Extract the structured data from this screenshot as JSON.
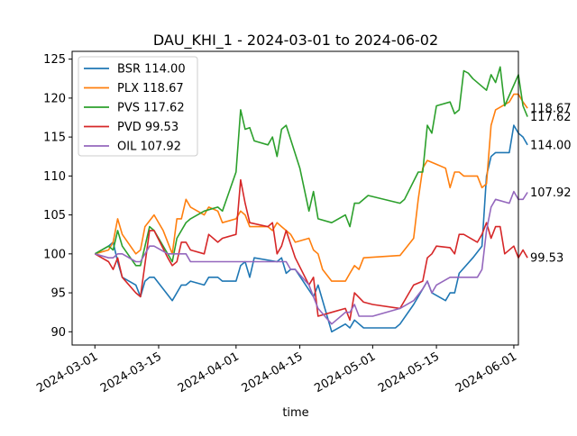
{
  "chart_data": {
    "type": "line",
    "title": "DAU_KHI_1 - 2024-03-01 to 2024-06-02",
    "xlabel": "time",
    "ylabel": "",
    "xlim": [
      "2024-02-25",
      "2024-06-02"
    ],
    "ylim": [
      88.3,
      126.0
    ],
    "grid": false,
    "legend_position": "top-left",
    "x_ticks": [
      "2024-03-01",
      "2024-03-15",
      "2024-04-01",
      "2024-04-15",
      "2024-05-01",
      "2024-05-15",
      "2024-06-01"
    ],
    "y_ticks": [
      90,
      95,
      100,
      105,
      110,
      115,
      120,
      125
    ],
    "series": [
      {
        "name": "BSR 114.00",
        "color": "#1f77b4",
        "end_label": "114.00",
        "points": [
          [
            "2024-03-01",
            100
          ],
          [
            "2024-03-04",
            101
          ],
          [
            "2024-03-05",
            101.5
          ],
          [
            "2024-03-06",
            99
          ],
          [
            "2024-03-07",
            97
          ],
          [
            "2024-03-10",
            96
          ],
          [
            "2024-03-11",
            94.5
          ],
          [
            "2024-03-12",
            96.5
          ],
          [
            "2024-03-13",
            97
          ],
          [
            "2024-03-14",
            97
          ],
          [
            "2024-03-18",
            94
          ],
          [
            "2024-03-20",
            96
          ],
          [
            "2024-03-21",
            96
          ],
          [
            "2024-03-22",
            96.5
          ],
          [
            "2024-03-25",
            96
          ],
          [
            "2024-03-26",
            97
          ],
          [
            "2024-03-28",
            97
          ],
          [
            "2024-03-29",
            96.5
          ],
          [
            "2024-04-01",
            96.5
          ],
          [
            "2024-04-02",
            98.5
          ],
          [
            "2024-04-03",
            99
          ],
          [
            "2024-04-04",
            97
          ],
          [
            "2024-04-05",
            99.5
          ],
          [
            "2024-04-10",
            99
          ],
          [
            "2024-04-11",
            99.5
          ],
          [
            "2024-04-12",
            97.5
          ],
          [
            "2024-04-13",
            98
          ],
          [
            "2024-04-14",
            98
          ],
          [
            "2024-04-18",
            94.5
          ],
          [
            "2024-04-19",
            96
          ],
          [
            "2024-04-22",
            90
          ],
          [
            "2024-04-25",
            91
          ],
          [
            "2024-04-26",
            90.5
          ],
          [
            "2024-04-27",
            91.5
          ],
          [
            "2024-04-29",
            90.5
          ],
          [
            "2024-05-01",
            90.5
          ],
          [
            "2024-05-02",
            90.5
          ],
          [
            "2024-05-03",
            90.5
          ],
          [
            "2024-05-06",
            90.5
          ],
          [
            "2024-05-07",
            91
          ],
          [
            "2024-05-10",
            93.5
          ],
          [
            "2024-05-13",
            96.5
          ],
          [
            "2024-05-14",
            95
          ],
          [
            "2024-05-17",
            94
          ],
          [
            "2024-05-18",
            95
          ],
          [
            "2024-05-19",
            95
          ],
          [
            "2024-05-20",
            97.5
          ],
          [
            "2024-05-23",
            99.5
          ],
          [
            "2024-05-25",
            101
          ],
          [
            "2024-05-26",
            110
          ],
          [
            "2024-05-27",
            112.5
          ],
          [
            "2024-05-28",
            113
          ],
          [
            "2024-05-31",
            113
          ],
          [
            "2024-06-01",
            116.5
          ],
          [
            "2024-06-02",
            115.5
          ],
          [
            "2024-06-03",
            115
          ],
          [
            "2024-06-04",
            114
          ]
        ]
      },
      {
        "name": "PLX 118.67",
        "color": "#ff7f0e",
        "end_label": "118.67",
        "points": [
          [
            "2024-03-01",
            100
          ],
          [
            "2024-03-04",
            100.5
          ],
          [
            "2024-03-05",
            101.5
          ],
          [
            "2024-03-06",
            104.5
          ],
          [
            "2024-03-07",
            102.5
          ],
          [
            "2024-03-10",
            100
          ],
          [
            "2024-03-11",
            100.5
          ],
          [
            "2024-03-12",
            103.5
          ],
          [
            "2024-03-14",
            105
          ],
          [
            "2024-03-16",
            103
          ],
          [
            "2024-03-18",
            100
          ],
          [
            "2024-03-19",
            104.5
          ],
          [
            "2024-03-20",
            104.5
          ],
          [
            "2024-03-21",
            107
          ],
          [
            "2024-03-22",
            106
          ],
          [
            "2024-03-25",
            105
          ],
          [
            "2024-03-26",
            106
          ],
          [
            "2024-03-28",
            105.5
          ],
          [
            "2024-03-29",
            104
          ],
          [
            "2024-04-01",
            104.5
          ],
          [
            "2024-04-02",
            105.5
          ],
          [
            "2024-04-03",
            105
          ],
          [
            "2024-04-04",
            103.5
          ],
          [
            "2024-04-08",
            103.5
          ],
          [
            "2024-04-09",
            103
          ],
          [
            "2024-04-10",
            104
          ],
          [
            "2024-04-11",
            103.5
          ],
          [
            "2024-04-12",
            103
          ],
          [
            "2024-04-13",
            102.5
          ],
          [
            "2024-04-14",
            101.5
          ],
          [
            "2024-04-17",
            102
          ],
          [
            "2024-04-18",
            100.5
          ],
          [
            "2024-04-19",
            100
          ],
          [
            "2024-04-20",
            98
          ],
          [
            "2024-04-22",
            96.5
          ],
          [
            "2024-04-25",
            96.5
          ],
          [
            "2024-04-26",
            97.5
          ],
          [
            "2024-04-27",
            98.5
          ],
          [
            "2024-04-28",
            98
          ],
          [
            "2024-04-29",
            99.5
          ],
          [
            "2024-05-07",
            99.8
          ],
          [
            "2024-05-10",
            102
          ],
          [
            "2024-05-11",
            107
          ],
          [
            "2024-05-12",
            111
          ],
          [
            "2024-05-13",
            112
          ],
          [
            "2024-05-15",
            111.5
          ],
          [
            "2024-05-17",
            111
          ],
          [
            "2024-05-18",
            108.5
          ],
          [
            "2024-05-19",
            110.5
          ],
          [
            "2024-05-20",
            110.5
          ],
          [
            "2024-05-21",
            110
          ],
          [
            "2024-05-24",
            110
          ],
          [
            "2024-05-25",
            108.5
          ],
          [
            "2024-05-26",
            109
          ],
          [
            "2024-05-27",
            116.5
          ],
          [
            "2024-05-28",
            118.5
          ],
          [
            "2024-05-31",
            119.5
          ],
          [
            "2024-06-01",
            120.5
          ],
          [
            "2024-06-02",
            120.5
          ],
          [
            "2024-06-03",
            119.5
          ],
          [
            "2024-06-04",
            118.7
          ]
        ]
      },
      {
        "name": "PVS 117.62",
        "color": "#2ca02c",
        "end_label": "117.62",
        "points": [
          [
            "2024-03-01",
            100
          ],
          [
            "2024-03-04",
            101
          ],
          [
            "2024-03-05",
            100.5
          ],
          [
            "2024-03-06",
            103
          ],
          [
            "2024-03-07",
            101
          ],
          [
            "2024-03-10",
            98.5
          ],
          [
            "2024-03-11",
            98.5
          ],
          [
            "2024-03-13",
            103.5
          ],
          [
            "2024-03-14",
            103
          ],
          [
            "2024-03-18",
            99
          ],
          [
            "2024-03-19",
            102
          ],
          [
            "2024-03-21",
            104
          ],
          [
            "2024-03-22",
            104.5
          ],
          [
            "2024-03-25",
            105.5
          ],
          [
            "2024-03-28",
            106
          ],
          [
            "2024-03-29",
            105.5
          ],
          [
            "2024-04-01",
            110.5
          ],
          [
            "2024-04-02",
            118.5
          ],
          [
            "2024-04-03",
            116
          ],
          [
            "2024-04-04",
            116.2
          ],
          [
            "2024-04-05",
            114.5
          ],
          [
            "2024-04-08",
            114
          ],
          [
            "2024-04-09",
            115
          ],
          [
            "2024-04-10",
            112.5
          ],
          [
            "2024-04-11",
            116
          ],
          [
            "2024-04-12",
            116.5
          ],
          [
            "2024-04-15",
            111
          ],
          [
            "2024-04-17",
            105.5
          ],
          [
            "2024-04-18",
            108
          ],
          [
            "2024-04-19",
            104.5
          ],
          [
            "2024-04-22",
            104
          ],
          [
            "2024-04-25",
            105
          ],
          [
            "2024-04-26",
            103.5
          ],
          [
            "2024-04-27",
            106.5
          ],
          [
            "2024-04-28",
            106.5
          ],
          [
            "2024-04-30",
            107.5
          ],
          [
            "2024-05-07",
            106.5
          ],
          [
            "2024-05-08",
            107
          ],
          [
            "2024-05-11",
            110.5
          ],
          [
            "2024-05-12",
            110.5
          ],
          [
            "2024-05-13",
            116.5
          ],
          [
            "2024-05-14",
            115.5
          ],
          [
            "2024-05-15",
            119
          ],
          [
            "2024-05-18",
            119.5
          ],
          [
            "2024-05-19",
            118
          ],
          [
            "2024-05-20",
            118.5
          ],
          [
            "2024-05-21",
            123.5
          ],
          [
            "2024-05-22",
            123.2
          ],
          [
            "2024-05-23",
            122.5
          ],
          [
            "2024-05-26",
            121
          ],
          [
            "2024-05-27",
            123
          ],
          [
            "2024-05-28",
            122
          ],
          [
            "2024-05-29",
            124
          ],
          [
            "2024-05-30",
            119
          ],
          [
            "2024-06-02",
            123
          ],
          [
            "2024-06-03",
            119
          ],
          [
            "2024-06-04",
            117.6
          ]
        ]
      },
      {
        "name": "PVD 99.53",
        "color": "#d62728",
        "end_label": "99.53",
        "points": [
          [
            "2024-03-01",
            100
          ],
          [
            "2024-03-04",
            99
          ],
          [
            "2024-03-05",
            98
          ],
          [
            "2024-03-06",
            99.5
          ],
          [
            "2024-03-07",
            97
          ],
          [
            "2024-03-10",
            95
          ],
          [
            "2024-03-11",
            94.5
          ],
          [
            "2024-03-13",
            103
          ],
          [
            "2024-03-14",
            103
          ],
          [
            "2024-03-17",
            99.5
          ],
          [
            "2024-03-18",
            98.5
          ],
          [
            "2024-03-19",
            99
          ],
          [
            "2024-03-20",
            101.5
          ],
          [
            "2024-03-21",
            101.5
          ],
          [
            "2024-03-22",
            100.5
          ],
          [
            "2024-03-25",
            100
          ],
          [
            "2024-03-26",
            102.5
          ],
          [
            "2024-03-28",
            101.5
          ],
          [
            "2024-03-29",
            102
          ],
          [
            "2024-04-01",
            102.5
          ],
          [
            "2024-04-02",
            109.5
          ],
          [
            "2024-04-03",
            106.5
          ],
          [
            "2024-04-04",
            104
          ],
          [
            "2024-04-08",
            103.5
          ],
          [
            "2024-04-09",
            104
          ],
          [
            "2024-04-10",
            100
          ],
          [
            "2024-04-11",
            101
          ],
          [
            "2024-04-12",
            103
          ],
          [
            "2024-04-14",
            99.5
          ],
          [
            "2024-04-17",
            96
          ],
          [
            "2024-04-18",
            97
          ],
          [
            "2024-04-19",
            92
          ],
          [
            "2024-04-22",
            92.5
          ],
          [
            "2024-04-25",
            93
          ],
          [
            "2024-04-26",
            91.5
          ],
          [
            "2024-04-27",
            95
          ],
          [
            "2024-04-29",
            93.8
          ],
          [
            "2024-05-01",
            93.5
          ],
          [
            "2024-05-07",
            93
          ],
          [
            "2024-05-10",
            96
          ],
          [
            "2024-05-12",
            96.5
          ],
          [
            "2024-05-13",
            99.5
          ],
          [
            "2024-05-14",
            100
          ],
          [
            "2024-05-15",
            101
          ],
          [
            "2024-05-18",
            100.8
          ],
          [
            "2024-05-19",
            100
          ],
          [
            "2024-05-20",
            102.5
          ],
          [
            "2024-05-21",
            102.5
          ],
          [
            "2024-05-24",
            101.5
          ],
          [
            "2024-05-25",
            102.5
          ],
          [
            "2024-05-26",
            104
          ],
          [
            "2024-05-27",
            102
          ],
          [
            "2024-05-28",
            103.5
          ],
          [
            "2024-05-29",
            103.5
          ],
          [
            "2024-05-30",
            100
          ],
          [
            "2024-06-01",
            101
          ],
          [
            "2024-06-02",
            99.5
          ],
          [
            "2024-06-03",
            100.5
          ],
          [
            "2024-06-04",
            99.5
          ]
        ]
      },
      {
        "name": "OIL 107.92",
        "color": "#9467bd",
        "end_label": "107.92",
        "points": [
          [
            "2024-03-01",
            100
          ],
          [
            "2024-03-04",
            99.5
          ],
          [
            "2024-03-05",
            99.5
          ],
          [
            "2024-03-06",
            100
          ],
          [
            "2024-03-07",
            100
          ],
          [
            "2024-03-10",
            99
          ],
          [
            "2024-03-11",
            99
          ],
          [
            "2024-03-13",
            101
          ],
          [
            "2024-03-14",
            101
          ],
          [
            "2024-03-17",
            100
          ],
          [
            "2024-03-18",
            100
          ],
          [
            "2024-03-21",
            100
          ],
          [
            "2024-03-22",
            99
          ],
          [
            "2024-04-12",
            99
          ],
          [
            "2024-04-13",
            98
          ],
          [
            "2024-04-14",
            98
          ],
          [
            "2024-04-17",
            96
          ],
          [
            "2024-04-19",
            93
          ],
          [
            "2024-04-22",
            91
          ],
          [
            "2024-04-25",
            92.5
          ],
          [
            "2024-04-26",
            92.5
          ],
          [
            "2024-04-27",
            93.5
          ],
          [
            "2024-04-28",
            92
          ],
          [
            "2024-05-01",
            92
          ],
          [
            "2024-05-07",
            93
          ],
          [
            "2024-05-10",
            94
          ],
          [
            "2024-05-12",
            95.5
          ],
          [
            "2024-05-13",
            96.5
          ],
          [
            "2024-05-14",
            95
          ],
          [
            "2024-05-15",
            96
          ],
          [
            "2024-05-18",
            97
          ],
          [
            "2024-05-24",
            97
          ],
          [
            "2024-05-25",
            98
          ],
          [
            "2024-05-26",
            103
          ],
          [
            "2024-05-27",
            106
          ],
          [
            "2024-05-28",
            107
          ],
          [
            "2024-05-31",
            106.5
          ],
          [
            "2024-06-01",
            108
          ],
          [
            "2024-06-02",
            107
          ],
          [
            "2024-06-03",
            107
          ],
          [
            "2024-06-04",
            107.9
          ]
        ]
      }
    ]
  }
}
